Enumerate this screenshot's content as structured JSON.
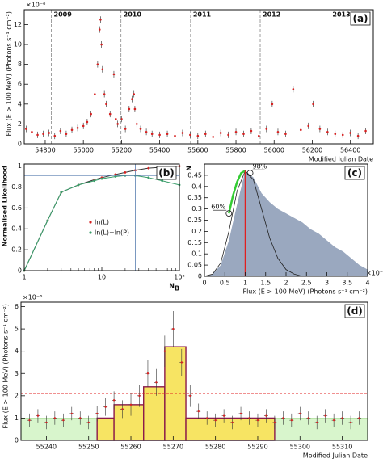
{
  "chart_data": [
    {
      "type": "scatter",
      "title": "(a)",
      "exponent": "×10⁻⁶",
      "ylabel": "Flux (E > 100 MeV) (Photons s⁻¹ cm⁻²)",
      "xlabel": "Modified Julian Date",
      "xlim": [
        54690,
        56520
      ],
      "xticks": [
        54800,
        55000,
        55200,
        55400,
        55600,
        55800,
        56000,
        56200,
        56400
      ],
      "ylim": [
        0,
        13.5
      ],
      "yticks": [
        0,
        2,
        4,
        6,
        8,
        10,
        12
      ],
      "vlines": [
        {
          "value": 54832,
          "label": "2009"
        },
        {
          "value": 55197,
          "label": "2010"
        },
        {
          "value": 55562,
          "label": "2011"
        },
        {
          "value": 55927,
          "label": "2012"
        },
        {
          "value": 56293,
          "label": "2013"
        }
      ],
      "series": [
        {
          "color": "#d62020",
          "x": [
            54700,
            54730,
            54760,
            54790,
            54820,
            54850,
            54880,
            54910,
            54940,
            54970,
            55000,
            55020,
            55040,
            55060,
            55075,
            55085,
            55090,
            55095,
            55100,
            55110,
            55120,
            55140,
            55160,
            55170,
            55180,
            55200,
            55220,
            55240,
            55255,
            55265,
            55270,
            55280,
            55300,
            55330,
            55360,
            55400,
            55440,
            55480,
            55520,
            55560,
            55600,
            55640,
            55680,
            55720,
            55760,
            55800,
            55840,
            55880,
            55920,
            55960,
            55990,
            56020,
            56060,
            56100,
            56140,
            56180,
            56205,
            56240,
            56280,
            56320,
            56360,
            56400,
            56440,
            56480
          ],
          "values": [
            1.5,
            1.2,
            0.9,
            1.0,
            1.1,
            0.8,
            1.3,
            1.0,
            1.4,
            1.6,
            1.8,
            2.2,
            3.0,
            5.0,
            8.0,
            11.5,
            12.5,
            10.0,
            7.5,
            5.0,
            4.0,
            3.0,
            7.0,
            2.5,
            2.0,
            2.5,
            1.5,
            3.5,
            4.5,
            5.0,
            3.5,
            2.0,
            1.5,
            1.2,
            1.0,
            0.9,
            1.0,
            0.8,
            1.1,
            0.9,
            0.8,
            1.0,
            0.7,
            1.1,
            0.9,
            1.2,
            1.0,
            1.3,
            0.8,
            1.5,
            4.0,
            1.2,
            1.0,
            5.5,
            1.4,
            1.8,
            4.0,
            1.5,
            1.2,
            1.0,
            0.9,
            1.1,
            0.8,
            1.3
          ]
        }
      ]
    },
    {
      "type": "line",
      "title": "(b)",
      "ylabel": "Normalised Likelihood",
      "xlabel": "N",
      "xlabel_sub": "B",
      "log_x": true,
      "xlim": [
        1,
        100
      ],
      "xticks": [
        1,
        10,
        {
          "value": 100,
          "label": "10²"
        }
      ],
      "ylim": [
        0,
        1.02
      ],
      "yticks": [
        0,
        0.2,
        0.4,
        0.6,
        0.8,
        1
      ],
      "crosshair": {
        "x": 27,
        "y": 0.91,
        "color": "#5a7fb0"
      },
      "series": [
        {
          "name": "ln(L)",
          "color": "#d62020",
          "x": [
            1,
            2,
            3,
            5,
            8,
            10,
            15,
            20,
            27,
            40,
            60,
            100
          ],
          "values": [
            0,
            0.48,
            0.75,
            0.82,
            0.87,
            0.89,
            0.92,
            0.94,
            0.96,
            0.98,
            0.99,
            1.0
          ]
        },
        {
          "name": "ln(L)+ln(P)",
          "color": "#3a9d6a",
          "x": [
            1,
            2,
            3,
            5,
            8,
            10,
            15,
            20,
            27,
            40,
            60,
            100
          ],
          "values": [
            0,
            0.48,
            0.75,
            0.82,
            0.86,
            0.88,
            0.9,
            0.91,
            0.91,
            0.89,
            0.86,
            0.82
          ]
        }
      ]
    },
    {
      "type": "area",
      "title": "(c)",
      "exponent": "×10⁻⁶",
      "ylabel": "N",
      "xlabel": "Flux (E > 100 MeV) (Photons s⁻¹ cm⁻²)",
      "xlim": [
        0,
        4
      ],
      "xticks": [
        0,
        0.5,
        1,
        1.5,
        2,
        2.5,
        3,
        3.5,
        4
      ],
      "ylim": [
        0,
        0.5
      ],
      "yticks": [
        0,
        0.05,
        0.1,
        0.15,
        0.2,
        0.25,
        0.3,
        0.35,
        0.4,
        0.45
      ],
      "series": [
        {
          "color": "#9aa8bf",
          "fill": true,
          "x": [
            0,
            0.2,
            0.4,
            0.6,
            0.8,
            1.0,
            1.2,
            1.4,
            1.6,
            1.8,
            2.0,
            2.2,
            2.4,
            2.6,
            2.8,
            3.0,
            3.2,
            3.4,
            3.6,
            3.8,
            4.0
          ],
          "values": [
            0,
            0.01,
            0.05,
            0.16,
            0.32,
            0.47,
            0.44,
            0.37,
            0.33,
            0.3,
            0.28,
            0.26,
            0.24,
            0.21,
            0.19,
            0.16,
            0.13,
            0.11,
            0.08,
            0.05,
            0.03
          ]
        },
        {
          "color": "#222222",
          "x": [
            0,
            0.2,
            0.4,
            0.6,
            0.8,
            1.0,
            1.2,
            1.4,
            1.6,
            1.8,
            2.0,
            2.2,
            2.4,
            2.6,
            2.8,
            3.0,
            3.2,
            3.4,
            3.6,
            3.8,
            4.0
          ],
          "values": [
            0,
            0.01,
            0.06,
            0.2,
            0.38,
            0.47,
            0.43,
            0.3,
            0.17,
            0.08,
            0.03,
            0.01,
            0,
            0,
            0,
            0,
            0,
            0,
            0,
            0,
            0
          ]
        },
        {
          "color": "#33cc33",
          "x": [
            0.6,
            0.7,
            0.8,
            0.9,
            1.0
          ],
          "values": [
            0.28,
            0.36,
            0.42,
            0.46,
            0.47
          ]
        }
      ],
      "vline": {
        "x": 1.0,
        "y": 0.47,
        "color": "#e02020"
      },
      "annotations": [
        {
          "text": "60%",
          "x": 0.6,
          "y": 0.28
        },
        {
          "text": "98%",
          "x": 1.12,
          "y": 0.46
        }
      ]
    },
    {
      "type": "errorbar",
      "title": "(d)",
      "exponent": "×10⁻⁶",
      "ylabel": "Flux (E > 100 MeV) (Photons s⁻¹ cm⁻²)",
      "xlabel": "Modified Julian Date",
      "xlim": [
        55234,
        55316
      ],
      "xticks": [
        55240,
        55250,
        55260,
        55270,
        55280,
        55290,
        55300,
        55310
      ],
      "ylim": [
        0,
        6.2
      ],
      "yticks": [
        0,
        1,
        2,
        3,
        4,
        5,
        6
      ],
      "hline": {
        "y": 2.1,
        "color": "#e02020"
      },
      "bands": [
        {
          "x": [
            55234,
            55252
          ],
          "value": 1.0
        },
        {
          "x": [
            55294,
            55316
          ],
          "value": 1.0
        }
      ],
      "blocks": {
        "edges": [
          55252,
          55256,
          55263,
          55268,
          55273,
          55294
        ],
        "values": [
          1.0,
          1.6,
          2.4,
          4.2,
          1.0
        ]
      },
      "series": [
        {
          "color": "#d62020",
          "x": [
            55236,
            55238,
            55240,
            55242,
            55244,
            55246,
            55248,
            55250,
            55252,
            55254,
            55256,
            55258,
            55260,
            55262,
            55264,
            55266,
            55268,
            55270,
            55272,
            55274,
            55276,
            55278,
            55280,
            55282,
            55284,
            55286,
            55288,
            55290,
            55292,
            55294,
            55296,
            55298,
            55300,
            55302,
            55304,
            55306,
            55308,
            55310,
            55312,
            55314
          ],
          "values": [
            0.9,
            1.1,
            0.8,
            1.0,
            0.9,
            1.2,
            1.0,
            0.8,
            1.2,
            1.5,
            1.8,
            1.4,
            1.6,
            2.0,
            3.0,
            2.6,
            4.0,
            5.0,
            3.5,
            2.0,
            1.3,
            1.0,
            0.9,
            1.1,
            0.8,
            1.2,
            1.0,
            0.9,
            1.1,
            0.8,
            1.0,
            0.9,
            1.2,
            1.0,
            0.8,
            1.1,
            0.9,
            1.0,
            0.8,
            1.0
          ],
          "errors": [
            0.3,
            0.3,
            0.3,
            0.3,
            0.3,
            0.3,
            0.3,
            0.3,
            0.35,
            0.4,
            0.4,
            0.4,
            0.5,
            0.5,
            0.6,
            0.6,
            0.7,
            0.8,
            0.6,
            0.5,
            0.35,
            0.3,
            0.3,
            0.3,
            0.3,
            0.3,
            0.3,
            0.3,
            0.3,
            0.3,
            0.3,
            0.3,
            0.3,
            0.3,
            0.3,
            0.3,
            0.3,
            0.3,
            0.3,
            0.3
          ]
        }
      ]
    }
  ]
}
